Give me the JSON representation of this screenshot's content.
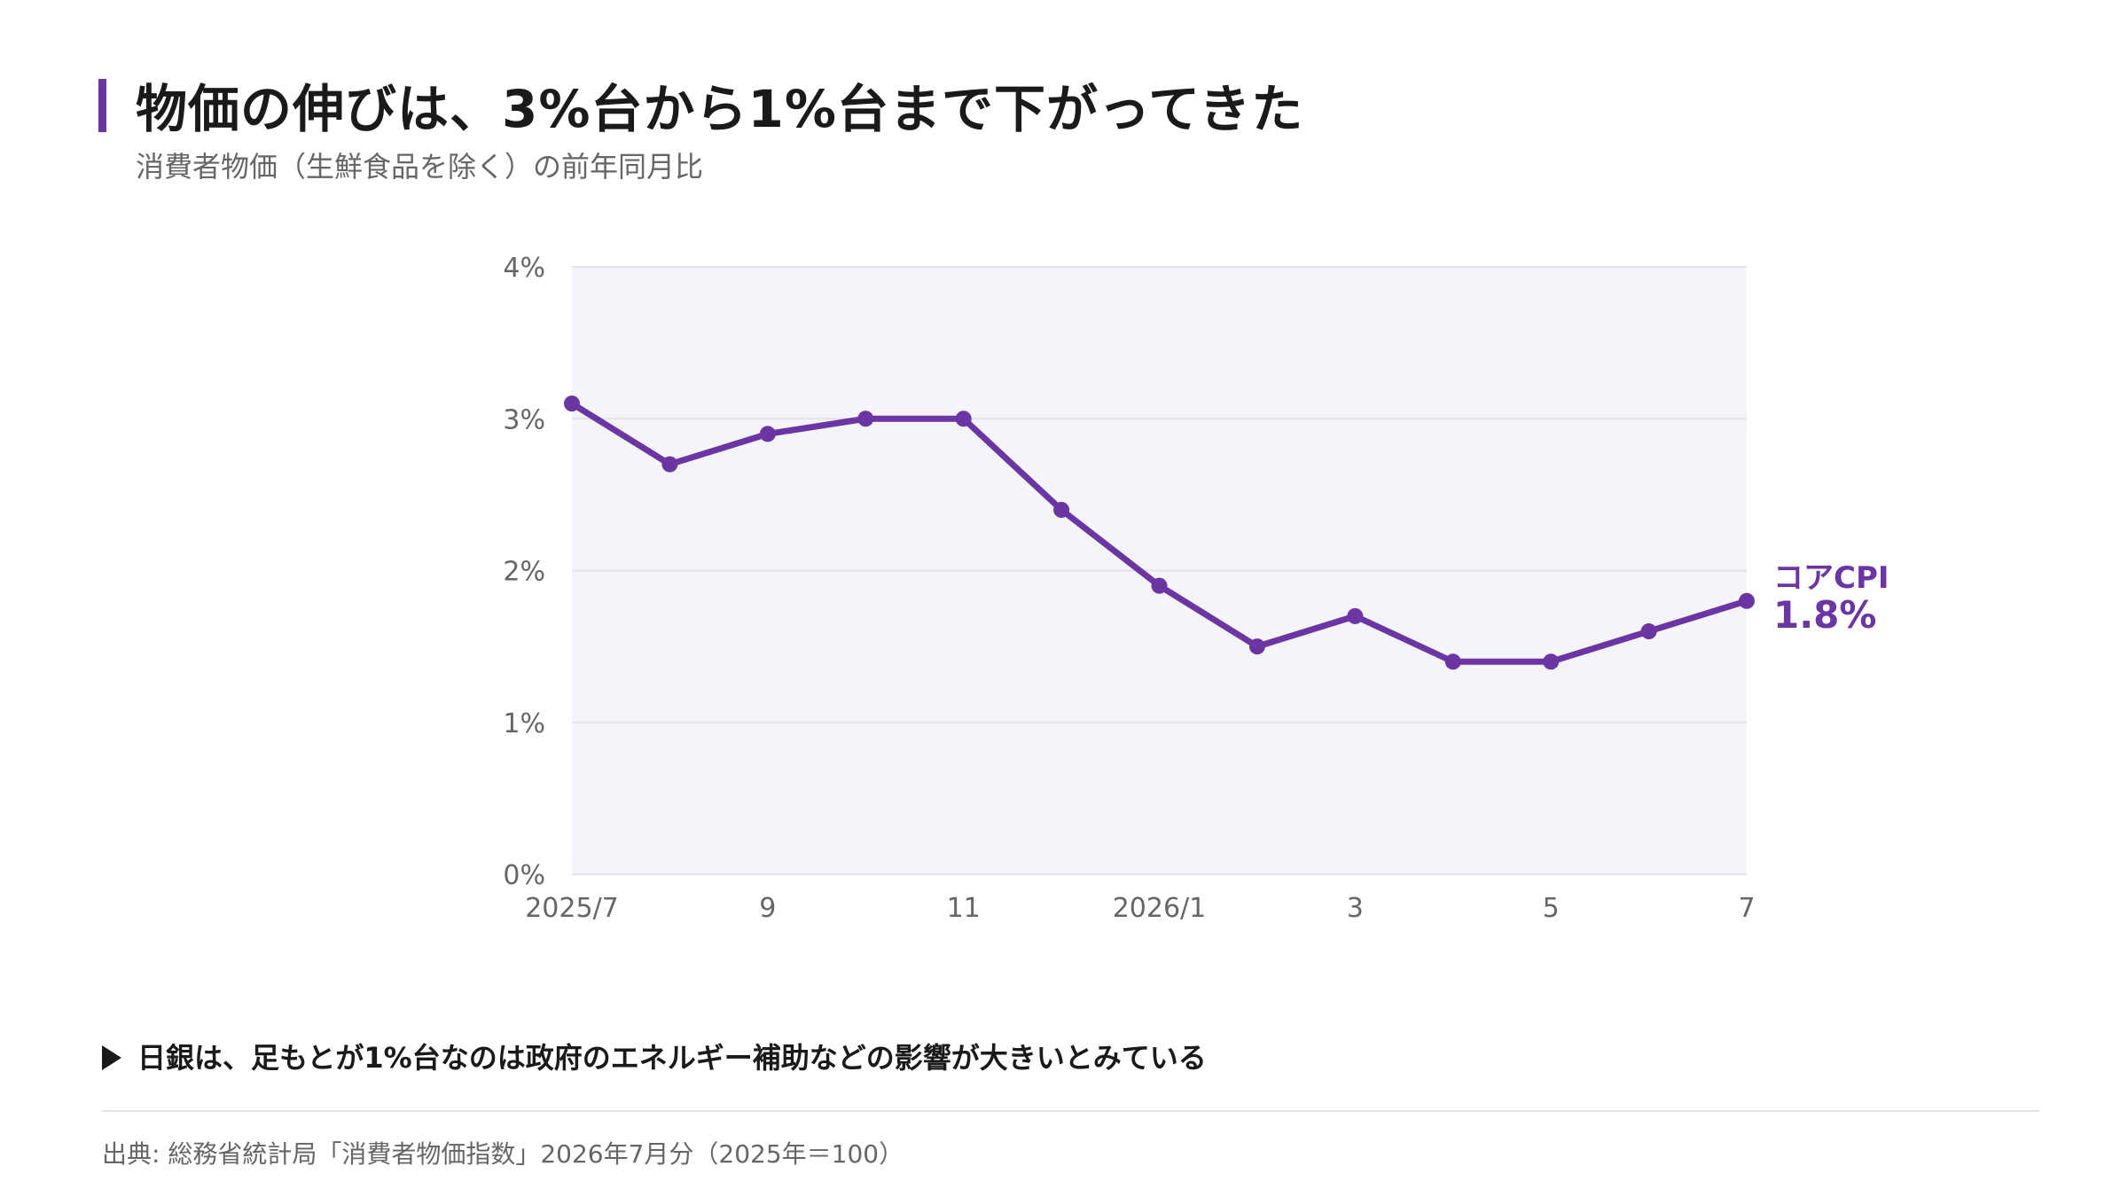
{
  "header": {
    "title": "物価の伸びは、3%台から1%台まで下がってきた",
    "subtitle": "消費者物価（生鮮食品を除く）の前年同月比"
  },
  "colors": {
    "accent": "#6b35a3",
    "plot_background": "#f4f5fa",
    "grid": "#e2e4ea"
  },
  "chart_data": {
    "type": "line",
    "x": [
      "2025/7",
      "2025/8",
      "2025/9",
      "2025/10",
      "2025/11",
      "2025/12",
      "2026/1",
      "2026/2",
      "2026/3",
      "2026/4",
      "2026/5",
      "2026/6",
      "2026/7"
    ],
    "x_tick_labels": [
      "2025/7",
      "",
      "9",
      "",
      "11",
      "",
      "2026/1",
      "",
      "3",
      "",
      "5",
      "",
      "7"
    ],
    "series": [
      {
        "name": "コアCPI",
        "values": [
          3.1,
          2.7,
          2.9,
          3.0,
          3.0,
          2.4,
          1.9,
          1.5,
          1.7,
          1.4,
          1.4,
          1.6,
          1.8
        ]
      }
    ],
    "ylim": [
      0,
      4
    ],
    "y_ticks": [
      0,
      1,
      2,
      3,
      4
    ],
    "y_tick_labels": [
      "0%",
      "1%",
      "2%",
      "3%",
      "4%"
    ],
    "grid": true,
    "end_label": {
      "series": "コアCPI",
      "value": "1.8%"
    }
  },
  "note": "日銀は、足もとが1%台なのは政府のエネルギー補助などの影響が大きいとみている",
  "source": "出典: 総務省統計局「消費者物価指数」2026年7月分（2025年＝100）"
}
